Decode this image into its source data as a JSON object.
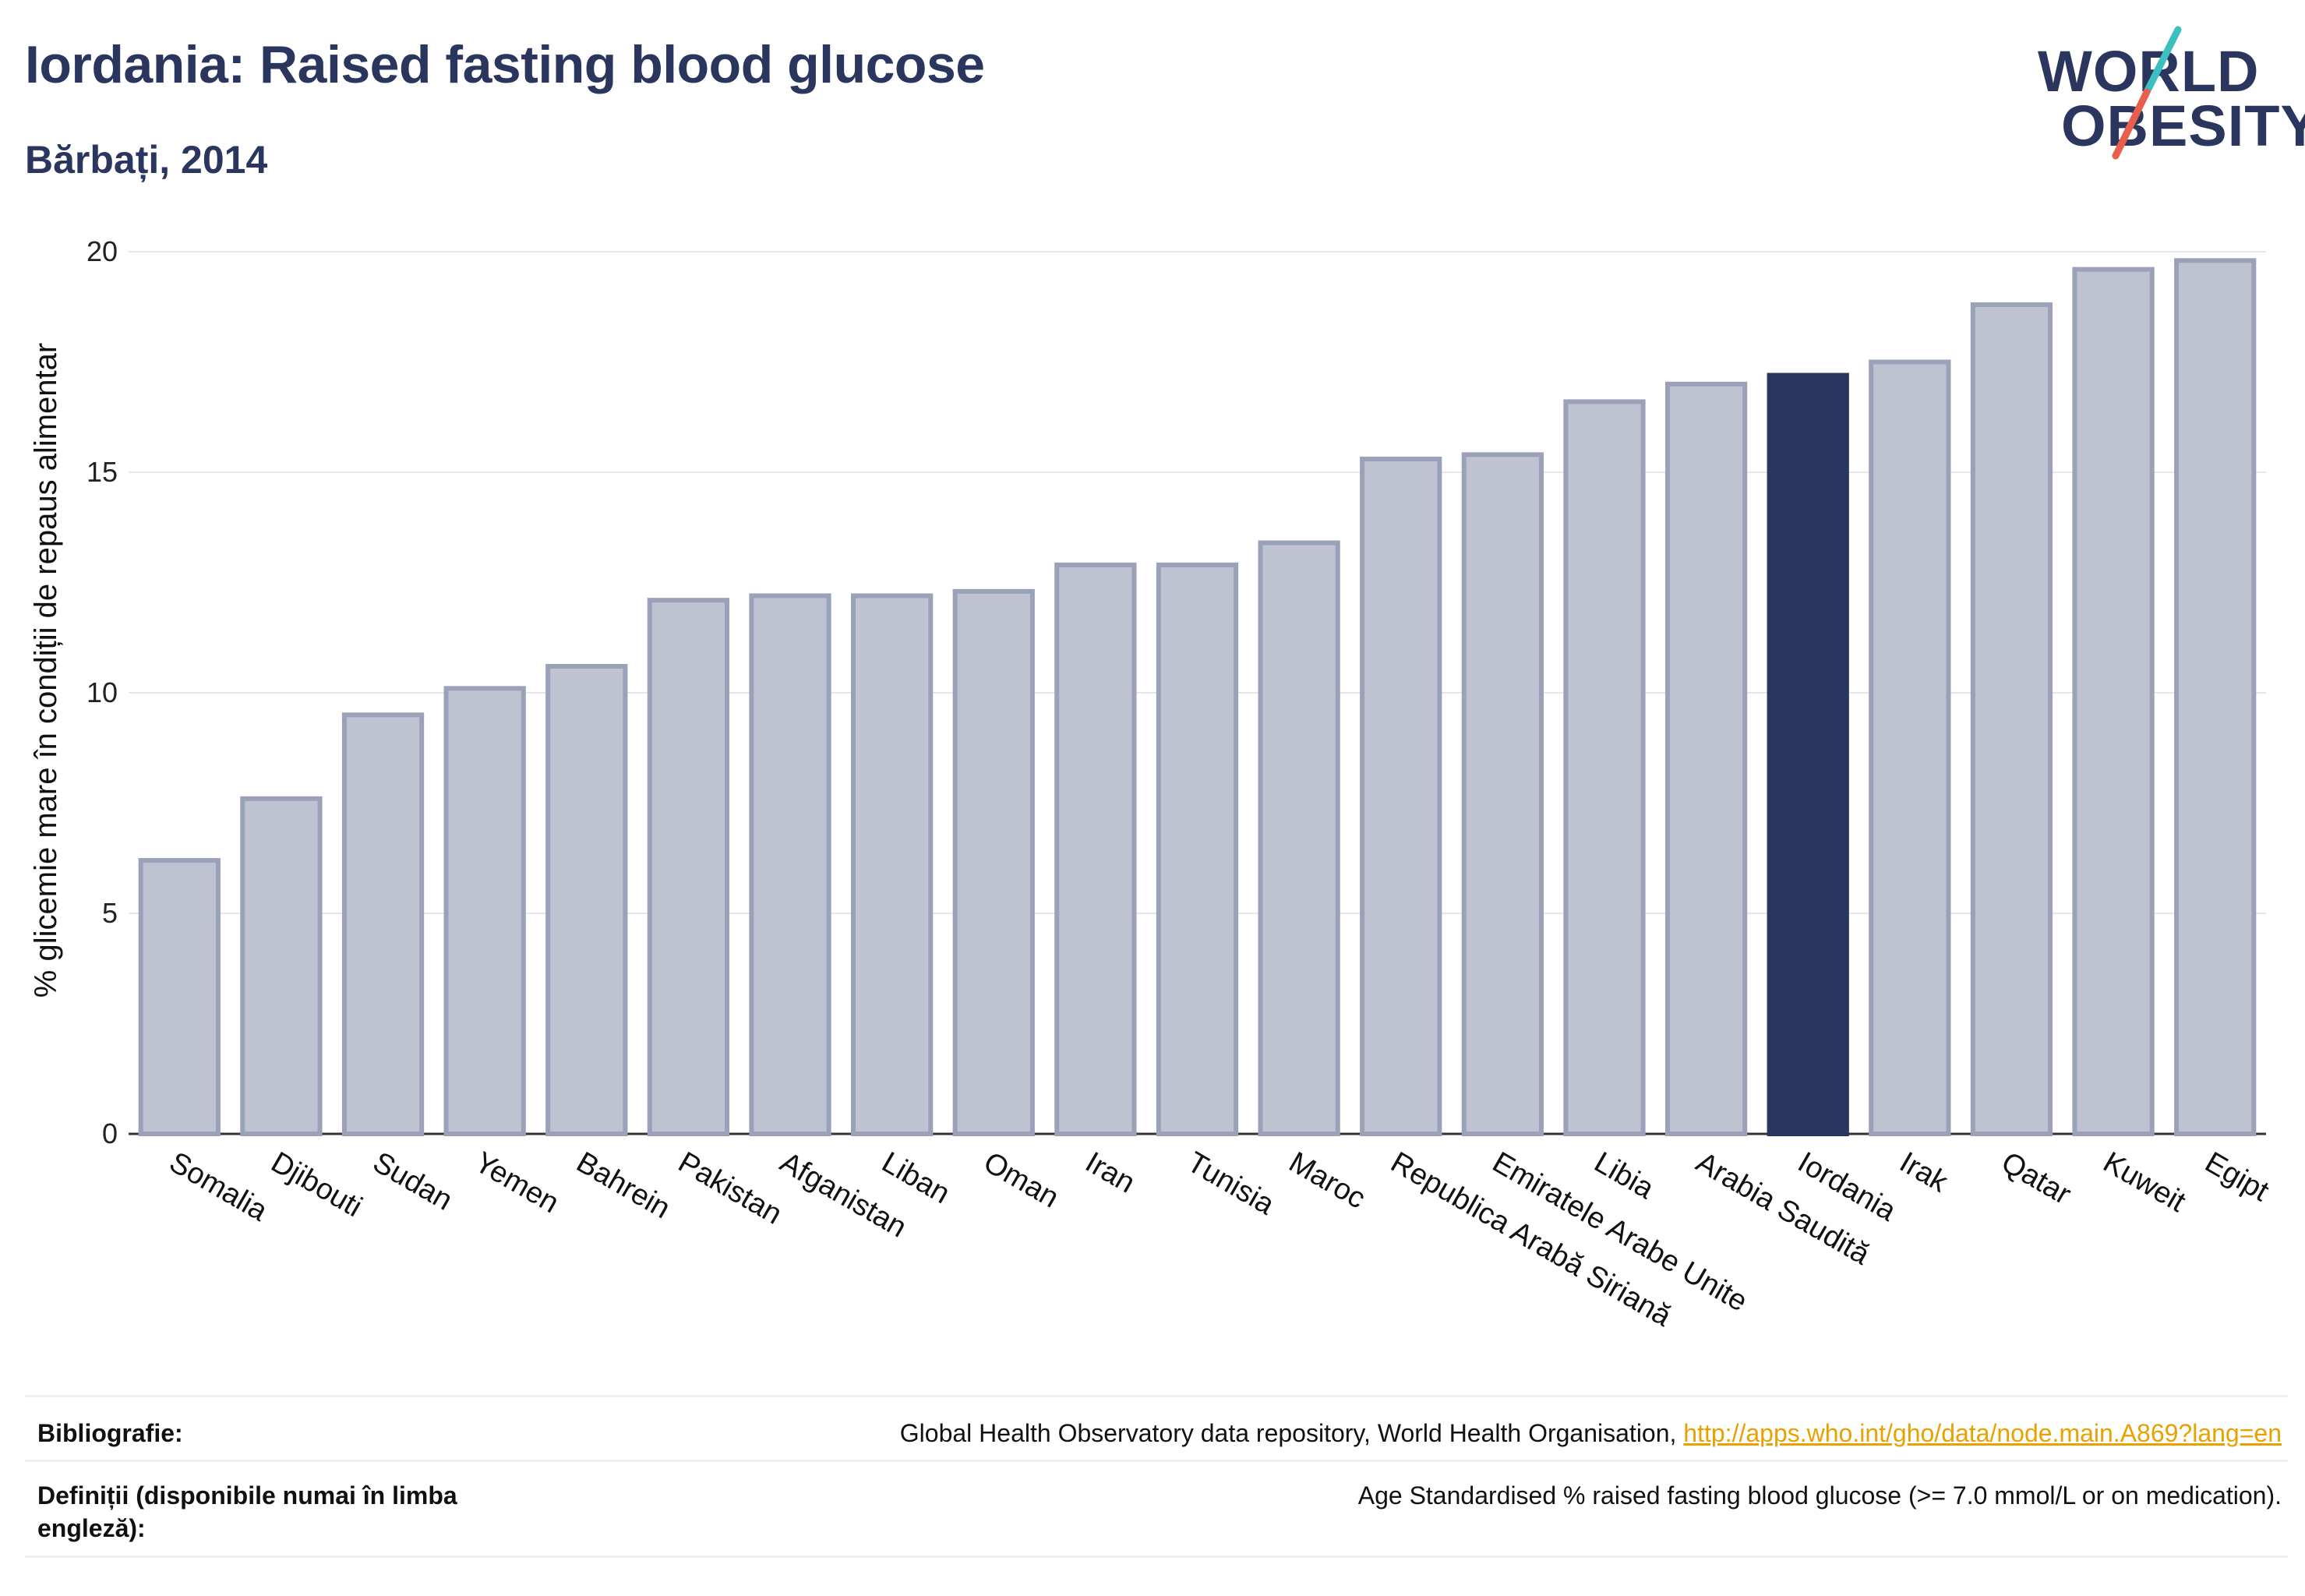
{
  "header": {
    "title": "Iordania: Raised fasting blood glucose",
    "subtitle": "Bărbați, 2014"
  },
  "logo": {
    "line1": "WORLD",
    "line2": "OBESITY",
    "slash_colors": [
      "#3bbfbf",
      "#e8604c"
    ]
  },
  "colors": {
    "bar": "#bfc3d1",
    "bar_stroke": "#9aa1b8",
    "highlight": "#2b365f",
    "grid": "#e6e6ee",
    "baseline": "#333333"
  },
  "chart_data": {
    "type": "bar",
    "categories": [
      "Somalia",
      "Djibouti",
      "Sudan",
      "Yemen",
      "Bahrein",
      "Pakistan",
      "Afganistan",
      "Liban",
      "Oman",
      "Iran",
      "Tunisia",
      "Maroc",
      "Republica Arabă Siriană",
      "Emiratele Arabe Unite",
      "Libia",
      "Arabia Saudită",
      "Iordania",
      "Irak",
      "Qatar",
      "Kuweit",
      "Egipt"
    ],
    "values": [
      6.2,
      7.6,
      9.5,
      10.1,
      10.6,
      12.1,
      12.2,
      12.2,
      12.3,
      12.9,
      12.9,
      13.4,
      15.3,
      15.4,
      16.6,
      17.0,
      17.2,
      17.5,
      18.8,
      19.6,
      19.8
    ],
    "highlight_category": "Iordania",
    "ylabel": "% glicemie mare în condiții de repaus alimentar",
    "xlabel": "",
    "ylim": [
      0,
      20
    ],
    "yticks": [
      0,
      5,
      10,
      15,
      20
    ],
    "grid": true
  },
  "footer": {
    "bibliography_label": "Bibliografie:",
    "bibliography_text": "Global Health Observatory data repository, World Health Organisation, ",
    "bibliography_link": "http://apps.who.int/gho/data/node.main.A869?lang=en",
    "definitions_label": "Definiții (disponibile numai în limba engleză):",
    "definitions_text": "Age Standardised % raised fasting blood glucose (>= 7.0 mmol/L or on medication)."
  }
}
